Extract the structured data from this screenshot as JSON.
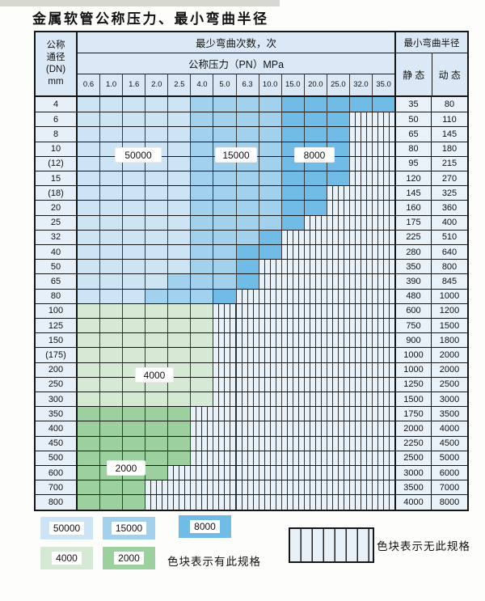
{
  "colors": {
    "b1": "#cde4f4",
    "b2": "#a2d1ee",
    "b3": "#70bce6",
    "g1": "#d6e9d4",
    "g2": "#9dd09f",
    "striped": "#eaf2f9",
    "header_bg": "#dae9f5",
    "dn_bg": "#e7f0f9",
    "value_bg": "#e9f1f9"
  },
  "legend": {
    "items": [
      {
        "key": "b1",
        "label": "50000"
      },
      {
        "key": "b2",
        "label": "15000"
      },
      {
        "key": "b3",
        "label": "8000"
      },
      {
        "key": "g1",
        "label": "4000"
      },
      {
        "key": "g2",
        "label": "2000"
      }
    ],
    "has_spec_label": "色块表示有此规格",
    "no_spec_label": "色块表示无此规格"
  },
  "chart_data": {
    "type": "table",
    "title": "金属软管公称压力、最小弯曲半径",
    "dn_header_lines": [
      "公称",
      "通径",
      "(DN)",
      "mm"
    ],
    "bend_cycles_header": "最少弯曲次数，次",
    "pressure_header": "公称压力（PN）MPa",
    "radius_header": "最小弯曲半径",
    "static_header": "静 态",
    "dynamic_header": "动 态",
    "pressures": [
      "0.6",
      "1.0",
      "1.6",
      "2.0",
      "2.5",
      "4.0",
      "5.0",
      "6.3",
      "10.0",
      "15.0",
      "20.0",
      "25.0",
      "32.0",
      "35.0"
    ],
    "bend_cycle_values": {
      "b1": 50000,
      "b2": 15000,
      "b3": 8000,
      "g1": 4000,
      "g2": 2000
    },
    "rows": [
      {
        "dn": "4",
        "bands": [
          [
            "b1",
            5
          ],
          [
            "b2",
            4
          ],
          [
            "b3",
            5
          ]
        ],
        "static": "35",
        "dynamic": "80"
      },
      {
        "dn": "6",
        "bands": [
          [
            "b1",
            5
          ],
          [
            "b2",
            4
          ],
          [
            "b3",
            3
          ]
        ],
        "static": "50",
        "dynamic": "110"
      },
      {
        "dn": "8",
        "bands": [
          [
            "b1",
            5
          ],
          [
            "b2",
            4
          ],
          [
            "b3",
            3
          ]
        ],
        "static": "65",
        "dynamic": "145"
      },
      {
        "dn": "10",
        "bands": [
          [
            "b1",
            5
          ],
          [
            "b2",
            4
          ],
          [
            "b3",
            3
          ]
        ],
        "static": "80",
        "dynamic": "180"
      },
      {
        "dn": "(12)",
        "bands": [
          [
            "b1",
            5
          ],
          [
            "b2",
            4
          ],
          [
            "b3",
            3
          ]
        ],
        "static": "95",
        "dynamic": "215"
      },
      {
        "dn": "15",
        "bands": [
          [
            "b1",
            5
          ],
          [
            "b2",
            4
          ],
          [
            "b3",
            3
          ]
        ],
        "static": "120",
        "dynamic": "270"
      },
      {
        "dn": "(18)",
        "bands": [
          [
            "b1",
            5
          ],
          [
            "b2",
            4
          ],
          [
            "b3",
            2
          ]
        ],
        "static": "145",
        "dynamic": "325"
      },
      {
        "dn": "20",
        "bands": [
          [
            "b1",
            5
          ],
          [
            "b2",
            4
          ],
          [
            "b3",
            2
          ]
        ],
        "static": "160",
        "dynamic": "360"
      },
      {
        "dn": "25",
        "bands": [
          [
            "b1",
            5
          ],
          [
            "b2",
            4
          ],
          [
            "b3",
            1
          ]
        ],
        "static": "175",
        "dynamic": "400"
      },
      {
        "dn": "32",
        "bands": [
          [
            "b1",
            5
          ],
          [
            "b2",
            3
          ],
          [
            "b3",
            1
          ]
        ],
        "static": "225",
        "dynamic": "510"
      },
      {
        "dn": "40",
        "bands": [
          [
            "b1",
            5
          ],
          [
            "b2",
            2
          ],
          [
            "b3",
            2
          ]
        ],
        "static": "280",
        "dynamic": "640"
      },
      {
        "dn": "50",
        "bands": [
          [
            "b1",
            5
          ],
          [
            "b2",
            2
          ],
          [
            "b3",
            1
          ]
        ],
        "static": "350",
        "dynamic": "800"
      },
      {
        "dn": "65",
        "bands": [
          [
            "b1",
            4
          ],
          [
            "b2",
            3
          ],
          [
            "b3",
            1
          ]
        ],
        "static": "390",
        "dynamic": "845"
      },
      {
        "dn": "80",
        "bands": [
          [
            "b1",
            3
          ],
          [
            "b2",
            3
          ],
          [
            "b3",
            1
          ]
        ],
        "static": "480",
        "dynamic": "1000"
      },
      {
        "dn": "100",
        "bands": [
          [
            "g1",
            6
          ]
        ],
        "static": "600",
        "dynamic": "1200"
      },
      {
        "dn": "125",
        "bands": [
          [
            "g1",
            6
          ]
        ],
        "static": "750",
        "dynamic": "1500"
      },
      {
        "dn": "150",
        "bands": [
          [
            "g1",
            6
          ]
        ],
        "static": "900",
        "dynamic": "1800"
      },
      {
        "dn": "(175)",
        "bands": [
          [
            "g1",
            6
          ]
        ],
        "static": "1000",
        "dynamic": "2000"
      },
      {
        "dn": "200",
        "bands": [
          [
            "g1",
            6
          ]
        ],
        "static": "1000",
        "dynamic": "2000"
      },
      {
        "dn": "250",
        "bands": [
          [
            "g1",
            6
          ]
        ],
        "static": "1250",
        "dynamic": "2500"
      },
      {
        "dn": "300",
        "bands": [
          [
            "g1",
            6
          ]
        ],
        "static": "1500",
        "dynamic": "3000"
      },
      {
        "dn": "350",
        "bands": [
          [
            "g2",
            5
          ]
        ],
        "static": "1750",
        "dynamic": "3500"
      },
      {
        "dn": "400",
        "bands": [
          [
            "g2",
            5
          ]
        ],
        "static": "2000",
        "dynamic": "4000"
      },
      {
        "dn": "450",
        "bands": [
          [
            "g2",
            5
          ]
        ],
        "static": "2250",
        "dynamic": "4500"
      },
      {
        "dn": "500",
        "bands": [
          [
            "g2",
            5
          ]
        ],
        "static": "2500",
        "dynamic": "5000"
      },
      {
        "dn": "600",
        "bands": [
          [
            "g2",
            4
          ]
        ],
        "static": "3000",
        "dynamic": "6000"
      },
      {
        "dn": "700",
        "bands": [
          [
            "g2",
            3
          ]
        ],
        "static": "3500",
        "dynamic": "7000"
      },
      {
        "dn": "800",
        "bands": [
          [
            "g2",
            3
          ]
        ],
        "static": "4000",
        "dynamic": "8000"
      }
    ]
  }
}
